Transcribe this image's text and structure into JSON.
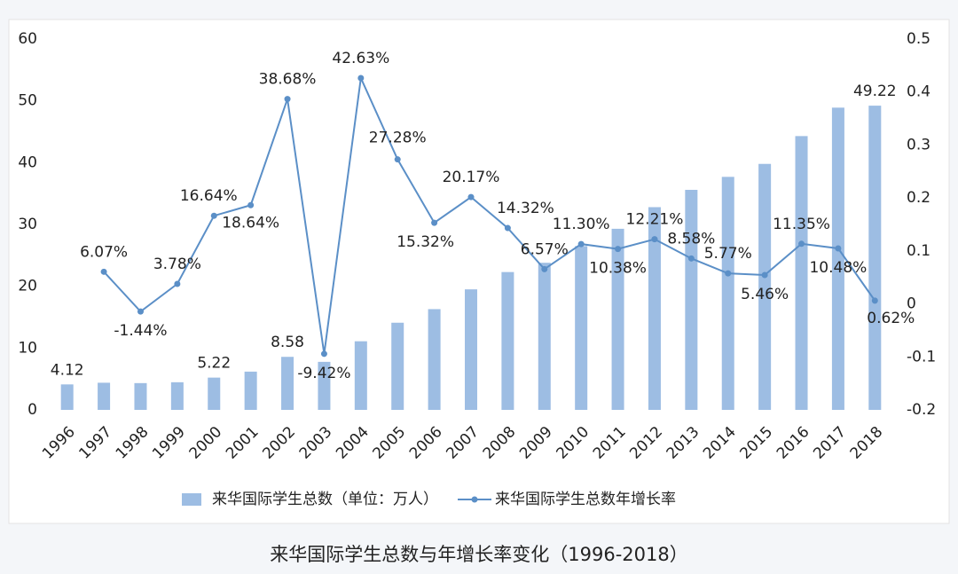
{
  "chart_data": {
    "type": "bar-line",
    "title": "来华国际学生总数与年增长率变化（1996-2018）",
    "categories": [
      "1996",
      "1997",
      "1998",
      "1999",
      "2000",
      "2001",
      "2002",
      "2003",
      "2004",
      "2005",
      "2006",
      "2007",
      "2008",
      "2009",
      "2010",
      "2011",
      "2012",
      "2013",
      "2014",
      "2015",
      "2016",
      "2017",
      "2018"
    ],
    "series": [
      {
        "name": "来华国际学生总数（单位：万人）",
        "type": "bar",
        "color": "#9dbde3",
        "axis": "y",
        "values": [
          4.12,
          4.39,
          4.33,
          4.47,
          5.22,
          6.19,
          8.58,
          7.77,
          11.1,
          14.1,
          16.3,
          19.5,
          22.3,
          23.8,
          26.5,
          29.3,
          32.8,
          35.6,
          37.7,
          39.8,
          44.3,
          48.9,
          49.22
        ],
        "value_labels": [
          "4.12",
          null,
          null,
          null,
          "5.22",
          null,
          "8.58",
          null,
          null,
          null,
          null,
          null,
          null,
          null,
          null,
          null,
          null,
          null,
          null,
          null,
          null,
          null,
          "49.22"
        ]
      },
      {
        "name": "来华国际学生总数年增长率",
        "type": "line",
        "color": "#5b8fc7",
        "axis": "y2",
        "values": [
          null,
          0.0607,
          -0.0144,
          0.0378,
          0.1664,
          0.1864,
          0.3868,
          -0.0942,
          0.4263,
          0.2728,
          0.1532,
          0.2017,
          0.1432,
          0.0657,
          0.113,
          0.1038,
          0.1221,
          0.0858,
          0.0577,
          0.0546,
          0.1135,
          0.1048,
          0.0062
        ],
        "value_labels": [
          null,
          "6.07%",
          "-1.44%",
          "3.78%",
          "16.64%",
          "18.64%",
          "38.68%",
          "-9.42%",
          "42.63%",
          "27.28%",
          "15.32%",
          "20.17%",
          "14.32%",
          "6.57%",
          "11.30%",
          "10.38%",
          "12.21%",
          "8.58%",
          "5.77%",
          "5.46%",
          "11.35%",
          "10.48%",
          "0.62%"
        ]
      }
    ],
    "ylim": [
      0,
      60
    ],
    "yticks": [
      0,
      10,
      20,
      30,
      40,
      50,
      60
    ],
    "y2lim": [
      -0.2,
      0.5
    ],
    "y2ticks": [
      -0.2,
      -0.1,
      0,
      0.1,
      0.2,
      0.3,
      0.4,
      0.5
    ],
    "legend": "bottom"
  }
}
